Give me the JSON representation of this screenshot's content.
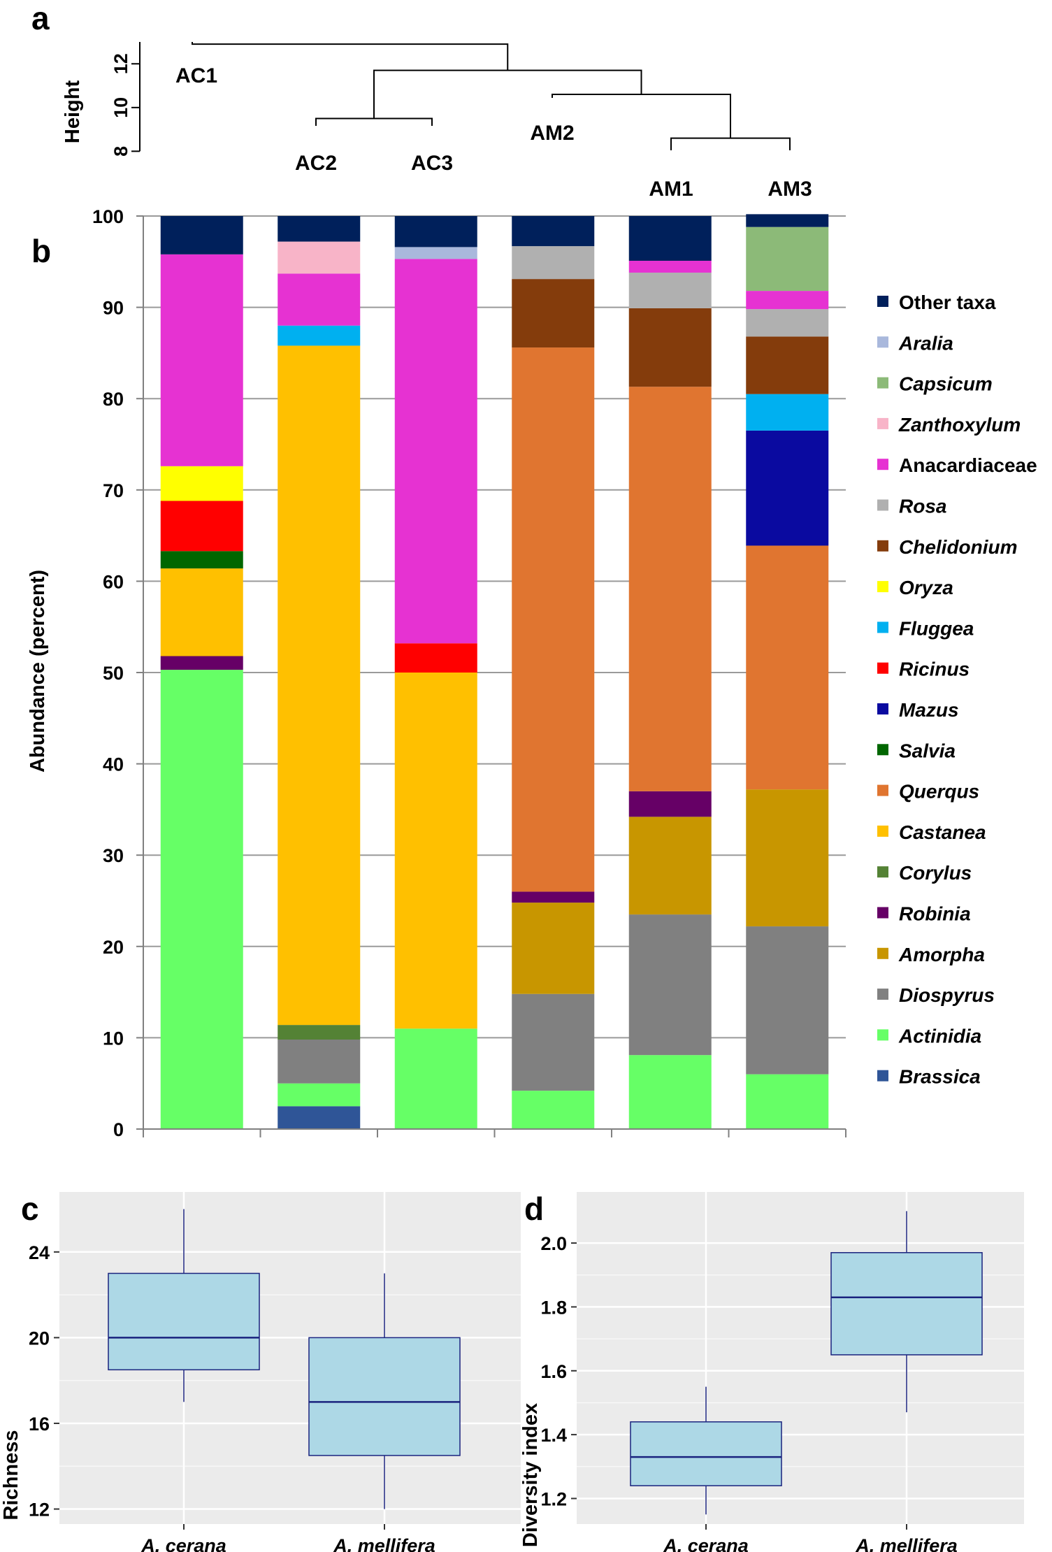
{
  "panel_labels": {
    "a": "a",
    "b": "b",
    "c": "c",
    "d": "d"
  },
  "chart_data": [
    {
      "type": "dendrogram",
      "panel": "a",
      "ylabel": "Height",
      "yticks": [
        8,
        10,
        12
      ],
      "ylim": [
        7.5,
        13
      ],
      "leaves": [
        "AC1",
        "AC2",
        "AC3",
        "AM2",
        "AM1",
        "AM3"
      ],
      "merges": [
        {
          "left": "AC2",
          "right": "AC3",
          "height": 9.5
        },
        {
          "left": "AM1",
          "right": "AM3",
          "height": 8.6
        },
        {
          "left": "AM2",
          "right": "AM1+AM3",
          "height": 10.6
        },
        {
          "left": "AC2+AC3",
          "right": "AM2+AM1+AM3",
          "height": 11.7
        },
        {
          "left": "AC1",
          "right": "rest",
          "height": 12.9
        }
      ]
    },
    {
      "type": "stacked-bar",
      "panel": "b",
      "ylabel": "Abundance (percent)",
      "ylim": [
        0,
        100
      ],
      "yticks": [
        0,
        10,
        20,
        30,
        40,
        50,
        60,
        70,
        80,
        90,
        100
      ],
      "categories": [
        "AC1",
        "AC2",
        "AC3",
        "AM2",
        "AM1",
        "AM3"
      ],
      "legend_position": "right",
      "series": [
        {
          "name": "Brassica",
          "italic": true,
          "color": "#2f5597",
          "values": [
            0,
            2.5,
            0,
            0,
            0,
            0
          ]
        },
        {
          "name": "Actinidia",
          "italic": true,
          "color": "#66ff66",
          "values": [
            50.3,
            2.5,
            11.0,
            4.2,
            8.1,
            6.0
          ]
        },
        {
          "name": "Diospyrus",
          "italic": true,
          "color": "#808080",
          "values": [
            0,
            4.8,
            0,
            10.6,
            15.4,
            16.2
          ]
        },
        {
          "name": "Amorpha",
          "italic": true,
          "color": "#c89600",
          "values": [
            0,
            0,
            0,
            10.0,
            10.7,
            15.0
          ]
        },
        {
          "name": "Robinia",
          "italic": true,
          "color": "#660066",
          "values": [
            1.5,
            0,
            0,
            1.2,
            2.8,
            0
          ]
        },
        {
          "name": "Corylus",
          "italic": true,
          "color": "#548235",
          "values": [
            0,
            1.6,
            0,
            0,
            0,
            0
          ]
        },
        {
          "name": "Castanea",
          "italic": true,
          "color": "#ffc000",
          "values": [
            9.6,
            74.4,
            39.0,
            0,
            0,
            0
          ]
        },
        {
          "name": "Querqus",
          "italic": true,
          "color": "#e07530",
          "values": [
            0,
            0,
            0,
            59.6,
            44.3,
            26.7
          ]
        },
        {
          "name": "Salvia",
          "italic": true,
          "color": "#006600",
          "values": [
            1.9,
            0,
            0,
            0,
            0,
            0
          ]
        },
        {
          "name": "Mazus",
          "italic": true,
          "color": "#0a0aa0",
          "values": [
            0,
            0,
            0,
            0,
            0,
            12.6
          ]
        },
        {
          "name": "Ricinus",
          "italic": true,
          "color": "#ff0000",
          "values": [
            5.5,
            0,
            3.2,
            0,
            0,
            0
          ]
        },
        {
          "name": "Fluggea",
          "italic": true,
          "color": "#00b0f0",
          "values": [
            0,
            2.2,
            0,
            0,
            0,
            4.0
          ]
        },
        {
          "name": "Oryza",
          "italic": true,
          "color": "#ffff00",
          "values": [
            3.8,
            0,
            0,
            0,
            0,
            0
          ]
        },
        {
          "name": "Chelidonium",
          "italic": true,
          "color": "#843c0c",
          "values": [
            0,
            0,
            0,
            7.5,
            8.6,
            6.3
          ]
        },
        {
          "name": "Rosa",
          "italic": true,
          "color": "#b0b0b0",
          "values": [
            0,
            0,
            0,
            3.6,
            3.9,
            3.0
          ]
        },
        {
          "name": "Anacardiaceae",
          "italic": false,
          "color": "#e632d2",
          "values": [
            23.2,
            5.7,
            42.1,
            0,
            1.3,
            2.0
          ]
        },
        {
          "name": "Zanthoxylum",
          "italic": true,
          "color": "#f8b4c8",
          "values": [
            0,
            3.5,
            0,
            0,
            0,
            0
          ]
        },
        {
          "name": "Capsicum",
          "italic": true,
          "color": "#8cba78",
          "values": [
            0,
            0,
            0,
            0,
            0,
            7.0
          ]
        },
        {
          "name": "Aralia",
          "italic": true,
          "color": "#a9b8dc",
          "values": [
            0,
            0,
            1.3,
            0,
            0,
            0
          ]
        },
        {
          "name": "Other taxa",
          "italic": false,
          "color": "#00205b",
          "values": [
            4.2,
            2.8,
            3.4,
            3.3,
            4.9,
            1.4
          ]
        }
      ]
    },
    {
      "type": "boxplot",
      "panel": "c",
      "ylabel": "Richness",
      "ylim": [
        11.3,
        26.8
      ],
      "yticks": [
        12,
        16,
        20,
        24
      ],
      "categories": [
        "A. cerana",
        "A. mellifera"
      ],
      "boxes": [
        {
          "name": "A. cerana",
          "min": 17,
          "q1": 18.5,
          "median": 20,
          "q3": 23,
          "max": 26
        },
        {
          "name": "A. mellifera",
          "min": 12,
          "q1": 14.5,
          "median": 17,
          "q3": 20,
          "max": 23
        }
      ]
    },
    {
      "type": "boxplot",
      "panel": "d",
      "ylabel": "Diversity index",
      "ylim": [
        1.12,
        2.16
      ],
      "yticks": [
        1.2,
        1.4,
        1.6,
        1.8,
        2.0
      ],
      "categories": [
        "A. cerana",
        "A. mellifera"
      ],
      "boxes": [
        {
          "name": "A. cerana",
          "min": 1.15,
          "q1": 1.24,
          "median": 1.33,
          "q3": 1.44,
          "max": 1.55
        },
        {
          "name": "A. mellifera",
          "min": 1.47,
          "q1": 1.65,
          "median": 1.83,
          "q3": 1.97,
          "max": 2.1
        }
      ]
    }
  ]
}
